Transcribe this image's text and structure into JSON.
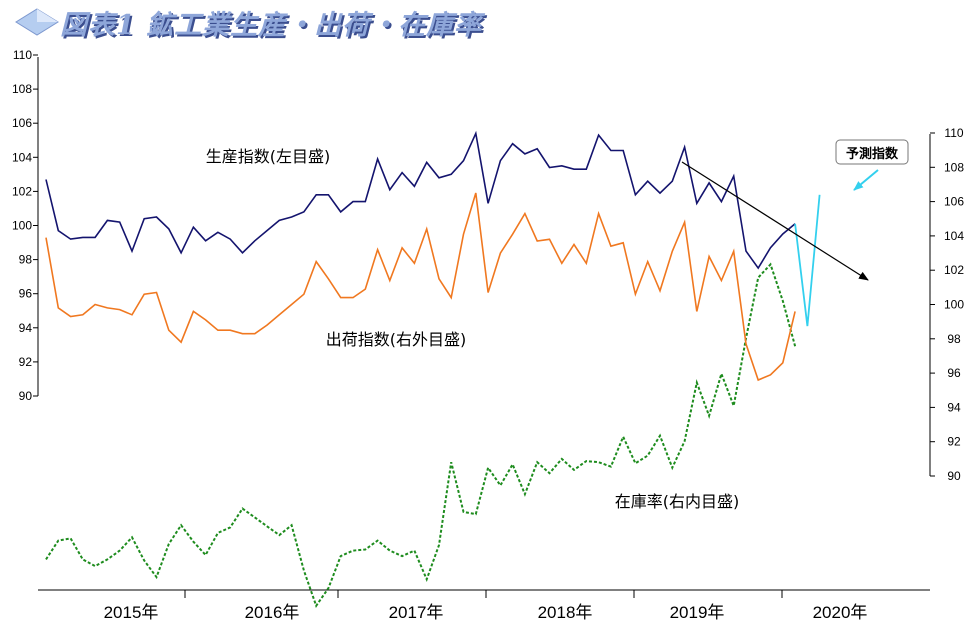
{
  "title": "図表1 鉱工業生産・出荷・在庫率",
  "colors": {
    "production": "#14146e",
    "shipments": "#f07820",
    "inventory": "#1e8c1e",
    "forecast": "#33d0ee",
    "trend_arrow": "#000000"
  },
  "icons": {
    "title_diamond": "diamond-icon"
  },
  "chart_data": {
    "type": "line",
    "months": [
      "2015-01",
      "2015-02",
      "2015-03",
      "2015-04",
      "2015-05",
      "2015-06",
      "2015-07",
      "2015-08",
      "2015-09",
      "2015-10",
      "2015-11",
      "2015-12",
      "2016-01",
      "2016-02",
      "2016-03",
      "2016-04",
      "2016-05",
      "2016-06",
      "2016-07",
      "2016-08",
      "2016-09",
      "2016-10",
      "2016-11",
      "2016-12",
      "2017-01",
      "2017-02",
      "2017-03",
      "2017-04",
      "2017-05",
      "2017-06",
      "2017-07",
      "2017-08",
      "2017-09",
      "2017-10",
      "2017-11",
      "2017-12",
      "2018-01",
      "2018-02",
      "2018-03",
      "2018-04",
      "2018-05",
      "2018-06",
      "2018-07",
      "2018-08",
      "2018-09",
      "2018-10",
      "2018-11",
      "2018-12",
      "2019-01",
      "2019-02",
      "2019-03",
      "2019-04",
      "2019-05",
      "2019-06",
      "2019-07",
      "2019-08",
      "2019-09",
      "2019-10",
      "2019-11",
      "2019-12",
      "2020-01",
      "2020-02",
      "2020-03",
      "2020-04",
      "2020-05"
    ],
    "x_tick_labels": [
      "2015年",
      "2016年",
      "2017年",
      "2018年",
      "2019年",
      "2020年"
    ],
    "left_axis": {
      "min": 90,
      "max": 110,
      "step": 2,
      "ticks": [
        "90",
        "92",
        "94",
        "96",
        "98",
        "100",
        "102",
        "104",
        "106",
        "108",
        "110"
      ]
    },
    "right_axis": {
      "min": 90,
      "max": 110,
      "step": 2,
      "ticks": [
        "90",
        "92",
        "94",
        "96",
        "98",
        "100",
        "102",
        "104",
        "106",
        "108",
        "110"
      ]
    },
    "series": [
      {
        "name": "生産指数(左目盛)",
        "axis": "left",
        "values": [
          102.7,
          99.7,
          99.2,
          99.3,
          99.3,
          100.3,
          100.2,
          98.5,
          100.4,
          100.5,
          99.8,
          98.4,
          99.9,
          99.1,
          99.6,
          99.2,
          98.4,
          99.1,
          99.7,
          100.3,
          100.5,
          100.8,
          101.8,
          101.8,
          100.8,
          101.4,
          101.4,
          103.9,
          102.1,
          103.1,
          102.3,
          103.7,
          102.8,
          103.0,
          103.8,
          105.4,
          101.3,
          103.8,
          104.8,
          104.2,
          104.5,
          103.4,
          103.5,
          103.3,
          103.3,
          105.3,
          104.4,
          104.4,
          101.8,
          102.6,
          101.9,
          102.6,
          104.6,
          101.3,
          102.5,
          101.4,
          102.9,
          98.5,
          97.5,
          98.7,
          99.5,
          100.1
        ]
      },
      {
        "name": "出荷指数(右外目盛)",
        "axis": "right_outer",
        "values": [
          103.9,
          99.8,
          99.3,
          99.4,
          100.0,
          99.8,
          99.7,
          99.4,
          100.6,
          100.7,
          98.5,
          97.8,
          99.6,
          99.1,
          98.5,
          98.5,
          98.3,
          98.3,
          98.8,
          99.4,
          100.0,
          100.6,
          102.5,
          101.5,
          100.4,
          100.4,
          100.9,
          103.2,
          101.4,
          103.3,
          102.4,
          104.4,
          101.5,
          100.4,
          104.1,
          106.5,
          100.7,
          103.0,
          104.1,
          105.3,
          103.7,
          103.8,
          102.4,
          103.5,
          102.4,
          105.3,
          103.4,
          103.6,
          100.6,
          102.5,
          100.8,
          103.1,
          104.8,
          99.6,
          102.8,
          101.4,
          103.1,
          97.7,
          95.6,
          95.9,
          96.6,
          99.6
        ]
      },
      {
        "name": "在庫率(右内目盛)",
        "axis": "right_inner",
        "values": [
          1.5,
          3.2,
          3.4,
          1.5,
          0.9,
          1.5,
          2.3,
          3.5,
          1.4,
          -0.1,
          2.9,
          4.6,
          3.1,
          1.9,
          3.9,
          4.4,
          6.1,
          5.3,
          4.5,
          3.7,
          4.6,
          0.5,
          -2.7,
          -1.1,
          1.8,
          2.3,
          2.4,
          3.2,
          2.3,
          1.8,
          2.3,
          -0.3,
          2.8,
          10.3,
          5.8,
          5.6,
          9.8,
          8.2,
          10.1,
          7.4,
          10.3,
          9.3,
          10.6,
          9.6,
          10.4,
          10.3,
          9.9,
          12.6,
          10.2,
          10.9,
          12.7,
          9.8,
          12.2,
          17.5,
          14.5,
          18.3,
          15.4,
          21.5,
          27.0,
          28.2,
          24.9,
          20.8
        ]
      },
      {
        "name": "予測指数",
        "axis": "left",
        "start_month": "2020-01",
        "values": [
          100.1,
          94.1,
          101.8
        ]
      }
    ],
    "annotations": {
      "production_label": "生産指数(左目盛)",
      "shipments_label": "出荷指数(右外目盛)",
      "inventory_label": "在庫率(右内目盛)",
      "forecast_label": "予測指数"
    },
    "grid": false,
    "legend": "none"
  }
}
